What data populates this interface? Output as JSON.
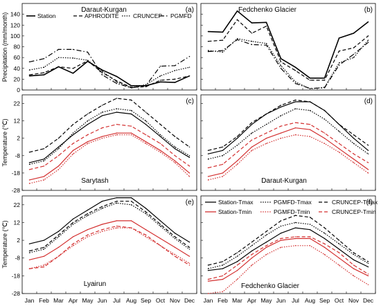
{
  "figure": {
    "months": [
      "Jan",
      "Feb",
      "Mar",
      "Apr",
      "May",
      "Jun",
      "Jul",
      "Aug",
      "Sep",
      "Oct",
      "Nov",
      "Dec"
    ],
    "ylabel_precip": "Precipitation (mm/month)",
    "ylabel_temp": "Temperature (℃)"
  },
  "chart_data": [
    {
      "panel": "(a)",
      "type": "line",
      "title": "Daraut-Kurgan",
      "ylim": [
        0,
        160
      ],
      "yticks": [
        0,
        20,
        40,
        60,
        80,
        100,
        120,
        140
      ],
      "grid": false,
      "series": [
        {
          "name": "Station",
          "style": "solid-thick",
          "color": "#000000",
          "values": [
            26,
            28,
            43,
            31,
            53,
            37,
            25,
            8,
            8,
            15,
            14,
            26
          ]
        },
        {
          "name": "APHRODITE",
          "style": "dashed",
          "color": "#000000",
          "values": [
            28,
            32,
            43,
            40,
            54,
            32,
            17,
            5,
            6,
            18,
            20,
            26
          ]
        },
        {
          "name": "CRUNCEP",
          "style": "dotted",
          "color": "#000000",
          "values": [
            37,
            42,
            60,
            59,
            55,
            35,
            15,
            4,
            10,
            26,
            36,
            42
          ]
        },
        {
          "name": "PGMFD",
          "style": "dashdot",
          "color": "#000000",
          "values": [
            52,
            58,
            75,
            75,
            70,
            28,
            12,
            4,
            8,
            44,
            45,
            62
          ]
        }
      ],
      "legend": "top"
    },
    {
      "panel": "(b)",
      "type": "line",
      "title": "Fedchenko Glacier",
      "ylim": [
        0,
        160
      ],
      "yticks": [
        0,
        20,
        40,
        60,
        80,
        100,
        120,
        140
      ],
      "grid": false,
      "series": [
        {
          "name": "Station",
          "style": "solid-thick",
          "color": "#000000",
          "values": [
            108,
            107,
            146,
            124,
            125,
            58,
            42,
            22,
            22,
            96,
            105,
            126
          ]
        },
        {
          "name": "APHRODITE",
          "style": "dashed",
          "color": "#000000",
          "values": [
            90,
            92,
            130,
            105,
            118,
            52,
            36,
            18,
            18,
            72,
            78,
            100
          ]
        },
        {
          "name": "CRUNCEP",
          "style": "dotted",
          "color": "#000000",
          "values": [
            73,
            70,
            95,
            90,
            86,
            45,
            15,
            2,
            5,
            50,
            60,
            92
          ]
        },
        {
          "name": "PGMFD",
          "style": "dashdot",
          "color": "#000000",
          "values": [
            71,
            73,
            93,
            84,
            83,
            40,
            12,
            3,
            4,
            46,
            66,
            88
          ]
        }
      ]
    },
    {
      "panel": "(c)",
      "type": "line",
      "title": "Sarytash",
      "ylim": [
        -28,
        27
      ],
      "yticks": [
        -28,
        -18,
        -8,
        2,
        12,
        22
      ],
      "grid": false,
      "series": [
        {
          "name": "Station-Tmax",
          "color": "#000000",
          "style": "solid",
          "values": [
            -12,
            -10,
            -3,
            4,
            10,
            15,
            17,
            16,
            10,
            3,
            -4,
            -9
          ]
        },
        {
          "name": "PGMFD-Tmax",
          "color": "#000000",
          "style": "dotted",
          "values": [
            -13,
            -11,
            -4,
            5,
            12,
            17,
            19,
            18,
            12,
            4,
            -3,
            -8
          ]
        },
        {
          "name": "CRUNCEP-Tmax",
          "color": "#000000",
          "style": "dashed",
          "values": [
            -6,
            -4,
            2,
            10,
            16,
            21,
            25,
            24,
            17,
            10,
            3,
            -3
          ]
        },
        {
          "name": "Station-Tmin",
          "color": "#d32f2f",
          "style": "solid",
          "values": [
            -22,
            -20,
            -14,
            -5,
            0,
            3,
            5,
            5,
            0,
            -5,
            -11,
            -18
          ]
        },
        {
          "name": "PGMFD-Tmin",
          "color": "#d32f2f",
          "style": "dotted",
          "values": [
            -24,
            -22,
            -16,
            -7,
            -1,
            2,
            4,
            4,
            -1,
            -6,
            -12,
            -20
          ]
        },
        {
          "name": "CRUNCEP-Tmin",
          "color": "#d32f2f",
          "style": "dashed",
          "values": [
            -16,
            -14,
            -8,
            -1,
            4,
            8,
            10,
            9,
            4,
            -1,
            -8,
            -14
          ]
        }
      ]
    },
    {
      "panel": "(d)",
      "type": "line",
      "title": "Daraut-Kurgan",
      "ylim": [
        -28,
        27
      ],
      "yticks": [
        -28,
        -18,
        -8,
        2,
        12,
        22
      ],
      "grid": false,
      "series": [
        {
          "name": "Station-Tmax",
          "color": "#000000",
          "style": "solid",
          "values": [
            -7,
            -5,
            2,
            10,
            16,
            20,
            23,
            23,
            18,
            10,
            2,
            -5
          ]
        },
        {
          "name": "PGMFD-Tmax",
          "color": "#000000",
          "style": "dotted",
          "values": [
            -10,
            -8,
            -2,
            5,
            10,
            15,
            19,
            18,
            13,
            6,
            -1,
            -7
          ]
        },
        {
          "name": "CRUNCEP-Tmax",
          "color": "#000000",
          "style": "dashed",
          "values": [
            -5,
            -3,
            3,
            11,
            16,
            21,
            24,
            23,
            18,
            10,
            4,
            -2
          ]
        },
        {
          "name": "Station-Tmin",
          "color": "#d32f2f",
          "style": "solid",
          "values": [
            -20,
            -18,
            -11,
            -3,
            2,
            5,
            8,
            7,
            2,
            -4,
            -10,
            -16
          ]
        },
        {
          "name": "PGMFD-Tmin",
          "color": "#d32f2f",
          "style": "dotted",
          "values": [
            -22,
            -20,
            -13,
            -5,
            -1,
            2,
            4,
            3,
            -1,
            -6,
            -12,
            -18
          ]
        },
        {
          "name": "CRUNCEP-Tmin",
          "color": "#d32f2f",
          "style": "dashed",
          "values": [
            -15,
            -13,
            -6,
            1,
            5,
            9,
            11,
            10,
            5,
            -1,
            -7,
            -12
          ]
        }
      ]
    },
    {
      "panel": "(e)",
      "type": "line",
      "title": "Lyairun",
      "ylim": [
        -28,
        27
      ],
      "yticks": [
        -28,
        -18,
        -8,
        2,
        12,
        22
      ],
      "grid": false,
      "series": [
        {
          "name": "Station-Tmax",
          "color": "#000000",
          "style": "solid",
          "values": [
            0,
            2,
            7,
            14,
            19,
            24,
            26,
            26,
            20,
            13,
            6,
            1
          ]
        },
        {
          "name": "PGMFD-Tmax",
          "color": "#000000",
          "style": "dotted",
          "values": [
            -5,
            -3,
            4,
            11,
            16,
            20,
            23,
            22,
            17,
            10,
            3,
            -3
          ]
        },
        {
          "name": "CRUNCEP-Tmax",
          "color": "#000000",
          "style": "dashed",
          "values": [
            -4,
            -2,
            5,
            12,
            17,
            21,
            24,
            24,
            18,
            11,
            4,
            -2
          ]
        },
        {
          "name": "Station-Tmin",
          "color": "#d32f2f",
          "style": "solid",
          "values": [
            -9,
            -7,
            -2,
            4,
            8,
            11,
            13,
            13,
            8,
            3,
            -2,
            -7
          ]
        },
        {
          "name": "PGMFD-Tmin",
          "color": "#d32f2f",
          "style": "dotted",
          "values": [
            -14,
            -12,
            -7,
            -1,
            4,
            7,
            9,
            9,
            4,
            -1,
            -6,
            -11
          ]
        },
        {
          "name": "CRUNCEP-Tmin",
          "color": "#d32f2f",
          "style": "dashed",
          "values": [
            -14,
            -13,
            -7,
            0,
            5,
            8,
            10,
            9,
            5,
            -1,
            -7,
            -12
          ]
        }
      ]
    },
    {
      "panel": "(f)",
      "type": "line",
      "title": "Fedchenko Glacier",
      "ylim": [
        -28,
        27
      ],
      "yticks": [
        -28,
        -18,
        -8,
        2,
        12,
        22
      ],
      "grid": false,
      "series": [
        {
          "name": "Station-Tmax",
          "color": "#000000",
          "style": "solid",
          "values": [
            -15,
            -14,
            -10,
            -4,
            1,
            6,
            9,
            8,
            3,
            -3,
            -9,
            -13
          ]
        },
        {
          "name": "PGMFD-Tmax",
          "color": "#000000",
          "style": "dotted",
          "values": [
            -14,
            -12,
            -7,
            -1,
            5,
            10,
            12,
            11,
            6,
            0,
            -6,
            -11
          ]
        },
        {
          "name": "CRUNCEP-Tmax",
          "color": "#000000",
          "style": "dashed",
          "values": [
            -12,
            -10,
            -5,
            1,
            7,
            13,
            16,
            15,
            9,
            2,
            -5,
            -10
          ]
        },
        {
          "name": "Station-Tmin",
          "color": "#d32f2f",
          "style": "solid",
          "values": [
            -21,
            -20,
            -15,
            -8,
            -2,
            2,
            3,
            3,
            -2,
            -8,
            -14,
            -18
          ]
        },
        {
          "name": "PGMFD-Tmin",
          "color": "#d32f2f",
          "style": "dotted",
          "values": [
            -28,
            -27,
            -20,
            -12,
            -6,
            -2,
            -1,
            -1,
            -6,
            -12,
            -18,
            -23
          ]
        },
        {
          "name": "CRUNCEP-Tmin",
          "color": "#d32f2f",
          "style": "dashed",
          "values": [
            -20,
            -18,
            -12,
            -6,
            -1,
            3,
            4,
            4,
            0,
            -5,
            -12,
            -17
          ]
        }
      ],
      "legend": "top"
    }
  ]
}
